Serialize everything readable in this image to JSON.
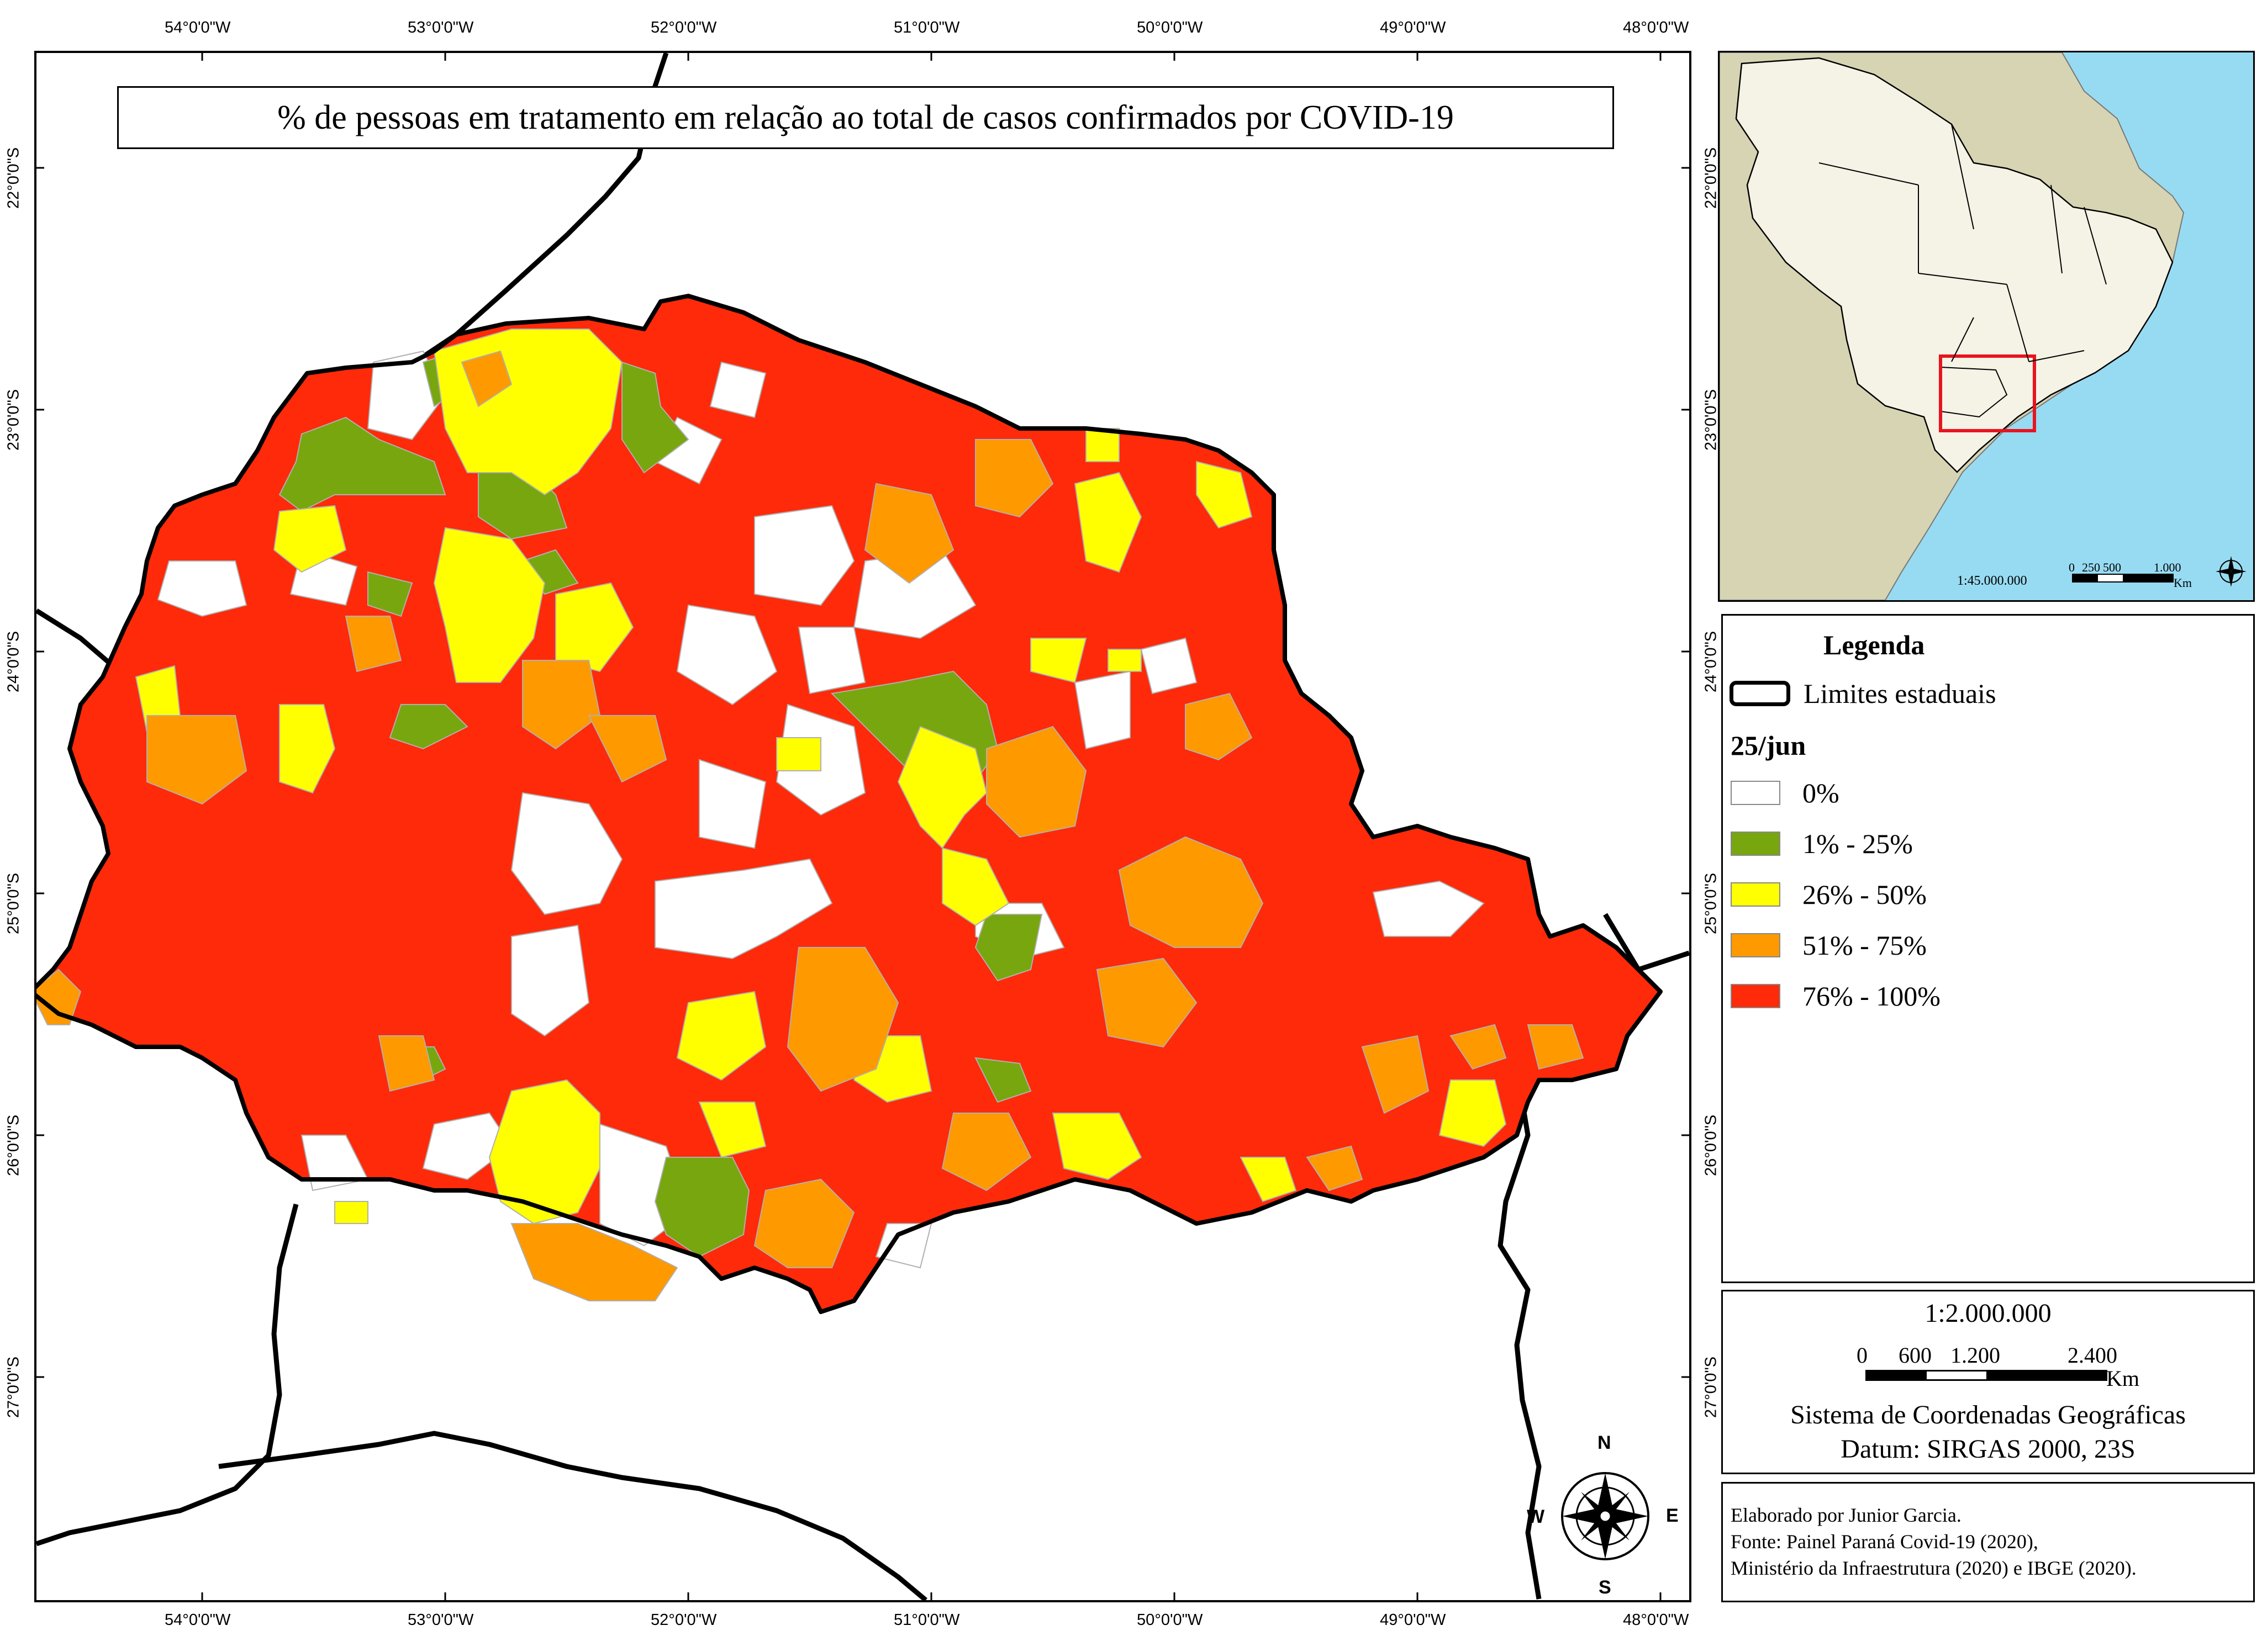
{
  "map": {
    "title": "% de pessoas em tratamento em relação ao total de casos confirmados por COVID-19",
    "longitudes": [
      "54°0'0\"W",
      "53°0'0\"W",
      "52°0'0\"W",
      "51°0'0\"W",
      "50°0'0\"W",
      "49°0'0\"W",
      "48°0'0\"W"
    ],
    "latitudes": [
      "22°0'0\"S",
      "23°0'0\"S",
      "24°0'0\"S",
      "25°0'0\"S",
      "26°0'0\"S",
      "27°0'0\"S"
    ],
    "compass": {
      "n": "N",
      "s": "S",
      "e": "E",
      "w": "W"
    }
  },
  "inset": {
    "scale_ratio": "1:45.000.000",
    "scale_ticks": [
      "0",
      "250",
      "500",
      "1.000"
    ],
    "scale_unit": "Km"
  },
  "legend": {
    "heading": "Legenda",
    "state_limits_label": "Limites estaduais",
    "date_label": "25/jun",
    "classes": [
      {
        "label": "0%",
        "color": "#ffffff"
      },
      {
        "label": "1% - 25%",
        "color": "#78a60f"
      },
      {
        "label": "26% - 50%",
        "color": "#ffff00"
      },
      {
        "label": "51% - 75%",
        "color": "#ff9900"
      },
      {
        "label": "76% - 100%",
        "color": "#ff2a0a"
      }
    ]
  },
  "scale": {
    "ratio": "1:2.000.000",
    "ticks": [
      "0",
      "600",
      "1.200",
      "2.400"
    ],
    "unit": "Km",
    "crs": "Sistema de Coordenadas Geográficas",
    "datum": "Datum: SIRGAS 2000, 23S"
  },
  "credits": {
    "author": "Elaborado por Junior Garcia.",
    "source_line1": "Fonte: Painel Paraná Covid-19 (2020),",
    "source_line2": "Ministério da Infraestrutura (2020) e IBGE (2020)."
  }
}
